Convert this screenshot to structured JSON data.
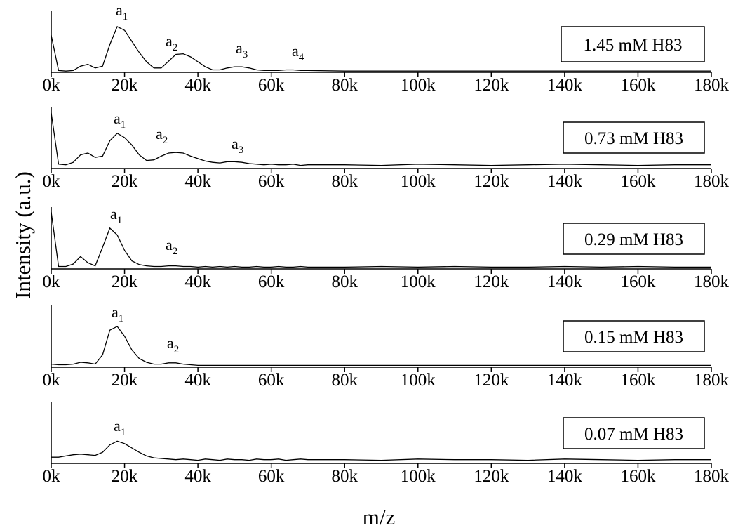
{
  "xlabel": "m/z",
  "ylabel": "Intensity (a.u.)",
  "chart_data": [
    {
      "type": "line",
      "label": "1.45 mM H83",
      "color": "#000000",
      "x": [
        0,
        2000,
        4000,
        6000,
        8000,
        10000,
        12000,
        14000,
        16000,
        18000,
        20000,
        22000,
        24000,
        26000,
        28000,
        30000,
        32000,
        34000,
        36000,
        38000,
        40000,
        42000,
        44000,
        46000,
        48000,
        50000,
        52000,
        54000,
        56000,
        58000,
        60000,
        62000,
        64000,
        66000,
        68000,
        70000,
        80000,
        90000,
        100000,
        110000,
        120000,
        130000,
        140000,
        150000,
        160000,
        170000,
        180000
      ],
      "values": [
        0.6,
        0.03,
        0.02,
        0.03,
        0.1,
        0.13,
        0.07,
        0.1,
        0.45,
        0.74,
        0.68,
        0.5,
        0.32,
        0.17,
        0.07,
        0.07,
        0.18,
        0.29,
        0.3,
        0.25,
        0.17,
        0.09,
        0.04,
        0.04,
        0.07,
        0.09,
        0.09,
        0.07,
        0.04,
        0.03,
        0.03,
        0.03,
        0.04,
        0.04,
        0.03,
        0.03,
        0.02,
        0.02,
        0.02,
        0.02,
        0.02,
        0.02,
        0.02,
        0.02,
        0.02,
        0.02,
        0.02
      ],
      "annotations": [
        {
          "text": "a",
          "subscript": "1"
        },
        {
          "text": "a",
          "subscript": "2"
        },
        {
          "text": "a",
          "subscript": "3"
        },
        {
          "text": "a",
          "subscript": "4"
        }
      ],
      "xlim": [
        0,
        180000
      ],
      "xticks": [
        {
          "value": 0,
          "label": "0k"
        },
        {
          "value": 20000,
          "label": "20k"
        },
        {
          "value": 40000,
          "label": "40k"
        },
        {
          "value": 60000,
          "label": "60k"
        },
        {
          "value": 80000,
          "label": "80k"
        },
        {
          "value": 100000,
          "label": "100k"
        },
        {
          "value": 120000,
          "label": "120k"
        },
        {
          "value": 140000,
          "label": "140k"
        },
        {
          "value": 160000,
          "label": "160k"
        },
        {
          "value": 180000,
          "label": "180k"
        }
      ],
      "ylim": [
        0,
        1
      ]
    },
    {
      "type": "line",
      "label": "0.73 mM H83",
      "color": "#000000",
      "x": [
        0,
        2000,
        4000,
        6000,
        8000,
        10000,
        12000,
        14000,
        16000,
        18000,
        20000,
        22000,
        24000,
        26000,
        28000,
        30000,
        32000,
        34000,
        36000,
        38000,
        40000,
        42000,
        44000,
        46000,
        48000,
        50000,
        52000,
        54000,
        56000,
        58000,
        60000,
        62000,
        64000,
        66000,
        68000,
        70000,
        80000,
        90000,
        100000,
        110000,
        120000,
        130000,
        140000,
        150000,
        160000,
        170000,
        180000
      ],
      "values": [
        0.9,
        0.07,
        0.06,
        0.1,
        0.22,
        0.25,
        0.18,
        0.2,
        0.45,
        0.57,
        0.5,
        0.38,
        0.22,
        0.13,
        0.14,
        0.2,
        0.25,
        0.26,
        0.25,
        0.2,
        0.16,
        0.12,
        0.1,
        0.09,
        0.11,
        0.11,
        0.1,
        0.08,
        0.07,
        0.06,
        0.07,
        0.06,
        0.06,
        0.07,
        0.05,
        0.06,
        0.06,
        0.05,
        0.07,
        0.06,
        0.05,
        0.06,
        0.07,
        0.06,
        0.05,
        0.06,
        0.06
      ],
      "annotations": [
        {
          "text": "a",
          "subscript": "1"
        },
        {
          "text": "a",
          "subscript": "2"
        },
        {
          "text": "a",
          "subscript": "3"
        }
      ],
      "xlim": [
        0,
        180000
      ],
      "xticks": [
        {
          "value": 0,
          "label": "0k"
        },
        {
          "value": 20000,
          "label": "20k"
        },
        {
          "value": 40000,
          "label": "40k"
        },
        {
          "value": 60000,
          "label": "60k"
        },
        {
          "value": 80000,
          "label": "80k"
        },
        {
          "value": 100000,
          "label": "100k"
        },
        {
          "value": 120000,
          "label": "120k"
        },
        {
          "value": 140000,
          "label": "140k"
        },
        {
          "value": 160000,
          "label": "160k"
        },
        {
          "value": 180000,
          "label": "180k"
        }
      ],
      "ylim": [
        0,
        1
      ]
    },
    {
      "type": "line",
      "label": "0.29 mM H83",
      "color": "#000000",
      "x": [
        0,
        2000,
        4000,
        6000,
        8000,
        10000,
        12000,
        14000,
        16000,
        18000,
        20000,
        22000,
        24000,
        26000,
        28000,
        30000,
        32000,
        34000,
        36000,
        38000,
        40000,
        42000,
        44000,
        46000,
        48000,
        50000,
        52000,
        54000,
        56000,
        58000,
        60000,
        62000,
        64000,
        66000,
        68000,
        70000,
        80000,
        90000,
        100000,
        110000,
        120000,
        130000,
        140000,
        150000,
        160000,
        170000,
        180000
      ],
      "values": [
        0.92,
        0.04,
        0.04,
        0.08,
        0.2,
        0.1,
        0.05,
        0.35,
        0.66,
        0.55,
        0.3,
        0.13,
        0.07,
        0.05,
        0.04,
        0.04,
        0.05,
        0.05,
        0.04,
        0.04,
        0.03,
        0.04,
        0.03,
        0.04,
        0.03,
        0.04,
        0.03,
        0.03,
        0.04,
        0.03,
        0.03,
        0.04,
        0.03,
        0.03,
        0.04,
        0.03,
        0.03,
        0.04,
        0.03,
        0.04,
        0.03,
        0.03,
        0.04,
        0.03,
        0.04,
        0.03,
        0.03
      ],
      "annotations": [
        {
          "text": "a",
          "subscript": "1"
        },
        {
          "text": "a",
          "subscript": "2"
        }
      ],
      "xlim": [
        0,
        180000
      ],
      "xticks": [
        {
          "value": 0,
          "label": "0k"
        },
        {
          "value": 20000,
          "label": "20k"
        },
        {
          "value": 40000,
          "label": "40k"
        },
        {
          "value": 60000,
          "label": "60k"
        },
        {
          "value": 80000,
          "label": "80k"
        },
        {
          "value": 100000,
          "label": "100k"
        },
        {
          "value": 120000,
          "label": "120k"
        },
        {
          "value": 140000,
          "label": "140k"
        },
        {
          "value": 160000,
          "label": "160k"
        },
        {
          "value": 180000,
          "label": "180k"
        }
      ],
      "ylim": [
        0,
        1
      ]
    },
    {
      "type": "line",
      "label": "0.15 mM H83",
      "color": "#000000",
      "x": [
        0,
        2000,
        4000,
        6000,
        8000,
        10000,
        12000,
        14000,
        16000,
        18000,
        20000,
        22000,
        24000,
        26000,
        28000,
        30000,
        32000,
        34000,
        36000,
        38000,
        40000,
        42000,
        44000,
        46000,
        48000,
        50000,
        52000,
        54000,
        56000,
        58000,
        60000,
        62000,
        64000,
        66000,
        68000,
        70000,
        80000,
        90000,
        100000,
        110000,
        120000,
        130000,
        140000,
        150000,
        160000,
        170000,
        180000
      ],
      "values": [
        0.05,
        0.04,
        0.04,
        0.05,
        0.08,
        0.07,
        0.05,
        0.2,
        0.6,
        0.66,
        0.5,
        0.28,
        0.14,
        0.08,
        0.05,
        0.05,
        0.07,
        0.07,
        0.05,
        0.04,
        0.03,
        0.03,
        0.03,
        0.03,
        0.03,
        0.03,
        0.03,
        0.03,
        0.03,
        0.03,
        0.03,
        0.03,
        0.03,
        0.03,
        0.03,
        0.03,
        0.03,
        0.03,
        0.03,
        0.03,
        0.03,
        0.03,
        0.03,
        0.03,
        0.03,
        0.03,
        0.03
      ],
      "annotations": [
        {
          "text": "a",
          "subscript": "1"
        },
        {
          "text": "a",
          "subscript": "2"
        }
      ],
      "xlim": [
        0,
        180000
      ],
      "xticks": [
        {
          "value": 0,
          "label": "0k"
        },
        {
          "value": 20000,
          "label": "20k"
        },
        {
          "value": 40000,
          "label": "40k"
        },
        {
          "value": 60000,
          "label": "60k"
        },
        {
          "value": 80000,
          "label": "80k"
        },
        {
          "value": 100000,
          "label": "100k"
        },
        {
          "value": 120000,
          "label": "120k"
        },
        {
          "value": 140000,
          "label": "140k"
        },
        {
          "value": 160000,
          "label": "160k"
        },
        {
          "value": 180000,
          "label": "180k"
        }
      ],
      "ylim": [
        0,
        1
      ]
    },
    {
      "type": "line",
      "label": "0.07 mM H83",
      "color": "#000000",
      "x": [
        0,
        2000,
        4000,
        6000,
        8000,
        10000,
        12000,
        14000,
        16000,
        18000,
        20000,
        22000,
        24000,
        26000,
        28000,
        30000,
        32000,
        34000,
        36000,
        38000,
        40000,
        42000,
        44000,
        46000,
        48000,
        50000,
        52000,
        54000,
        56000,
        58000,
        60000,
        62000,
        64000,
        66000,
        68000,
        70000,
        80000,
        90000,
        100000,
        110000,
        120000,
        130000,
        140000,
        150000,
        160000,
        170000,
        180000
      ],
      "values": [
        0.1,
        0.1,
        0.12,
        0.14,
        0.15,
        0.14,
        0.13,
        0.18,
        0.3,
        0.36,
        0.32,
        0.25,
        0.18,
        0.12,
        0.09,
        0.08,
        0.07,
        0.06,
        0.07,
        0.06,
        0.05,
        0.07,
        0.06,
        0.05,
        0.07,
        0.06,
        0.06,
        0.05,
        0.07,
        0.06,
        0.06,
        0.07,
        0.05,
        0.06,
        0.07,
        0.06,
        0.06,
        0.05,
        0.07,
        0.06,
        0.06,
        0.05,
        0.07,
        0.06,
        0.05,
        0.06,
        0.06
      ],
      "annotations": [
        {
          "text": "a",
          "subscript": "1"
        }
      ],
      "xlim": [
        0,
        180000
      ],
      "xticks": [
        {
          "value": 0,
          "label": "0k"
        },
        {
          "value": 20000,
          "label": "20k"
        },
        {
          "value": 40000,
          "label": "40k"
        },
        {
          "value": 60000,
          "label": "60k"
        },
        {
          "value": 80000,
          "label": "80k"
        },
        {
          "value": 100000,
          "label": "100k"
        },
        {
          "value": 120000,
          "label": "120k"
        },
        {
          "value": 140000,
          "label": "140k"
        },
        {
          "value": 160000,
          "label": "160k"
        },
        {
          "value": 180000,
          "label": "180k"
        }
      ],
      "ylim": [
        0,
        1
      ]
    }
  ]
}
